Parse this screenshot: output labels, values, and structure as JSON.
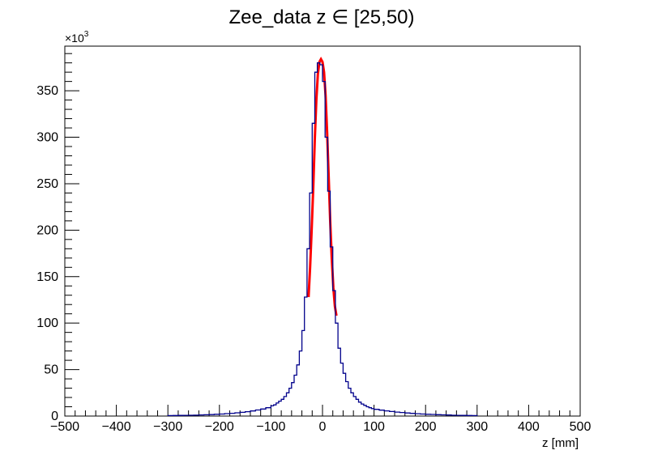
{
  "chart_data": {
    "type": "histogram",
    "title": "Zee_data z  ∈ [25,50)",
    "xlabel": "z [mm]",
    "ylabel": "",
    "y_multiplier_label": "×10",
    "y_multiplier_exp": "3",
    "xlim": [
      -500,
      500
    ],
    "ylim": [
      0,
      398
    ],
    "x_ticks": [
      -500,
      -400,
      -300,
      -200,
      -100,
      0,
      100,
      200,
      300,
      400,
      500
    ],
    "x_tick_labels": [
      "−500",
      "−400",
      "−300",
      "−200",
      "−100",
      "0",
      "100",
      "200",
      "300",
      "400",
      "500"
    ],
    "y_ticks": [
      0,
      50,
      100,
      150,
      200,
      250,
      300,
      350
    ],
    "y_tick_labels": [
      "0",
      "50",
      "100",
      "150",
      "200",
      "250",
      "300",
      "350"
    ],
    "bin_width": 5,
    "series": [
      {
        "color": "#00008b",
        "bins_x": [
          -300,
          -290,
          -280,
          -270,
          -260,
          -250,
          -240,
          -230,
          -220,
          -210,
          -200,
          -190,
          -180,
          -170,
          -160,
          -150,
          -140,
          -130,
          -120,
          -110,
          -100,
          -95,
          -90,
          -85,
          -80,
          -75,
          -70,
          -65,
          -60,
          -55,
          -50,
          -45,
          -40,
          -35,
          -30,
          -25,
          -20,
          -15,
          -10,
          -5,
          0,
          5,
          10,
          15,
          20,
          25,
          30,
          35,
          40,
          45,
          50,
          55,
          60,
          65,
          70,
          75,
          80,
          85,
          90,
          95,
          100,
          110,
          120,
          130,
          140,
          150,
          160,
          170,
          180,
          190,
          200,
          210,
          220,
          230,
          240,
          250,
          260,
          270,
          280,
          290
        ],
        "values": [
          0.5,
          0.6,
          0.7,
          0.8,
          0.9,
          1.0,
          1.2,
          1.4,
          1.6,
          1.9,
          2.2,
          2.6,
          3.0,
          3.5,
          4.0,
          4.7,
          5.5,
          6.5,
          7.6,
          9.0,
          11,
          12,
          14,
          16,
          18,
          21,
          25,
          30,
          36,
          44,
          55,
          70,
          92,
          128,
          180,
          240,
          315,
          370,
          380,
          378,
          360,
          300,
          242,
          182,
          135,
          100,
          73,
          57,
          46,
          37,
          30,
          25,
          21,
          18,
          15,
          13,
          11.5,
          10,
          9,
          8,
          7.2,
          6.4,
          5.6,
          4.9,
          4.3,
          3.8,
          3.3,
          2.9,
          2.5,
          2.2,
          1.9,
          1.7,
          1.5,
          1.3,
          1.1,
          0.9,
          0.8,
          0.7,
          0.6,
          0.5
        ]
      }
    ],
    "fit": {
      "color": "#ff0000",
      "x_range": [
        -27,
        27
      ],
      "points_x": [
        -27,
        -24,
        -21,
        -18,
        -15,
        -12,
        -9,
        -6,
        -3,
        0,
        3,
        6,
        9,
        12,
        15,
        18,
        21,
        24,
        27
      ],
      "points_y": [
        128,
        160,
        200,
        246,
        298,
        340,
        368,
        381,
        384,
        381,
        370,
        345,
        305,
        258,
        210,
        170,
        138,
        118,
        108
      ]
    },
    "grid": false,
    "legend": "none"
  }
}
